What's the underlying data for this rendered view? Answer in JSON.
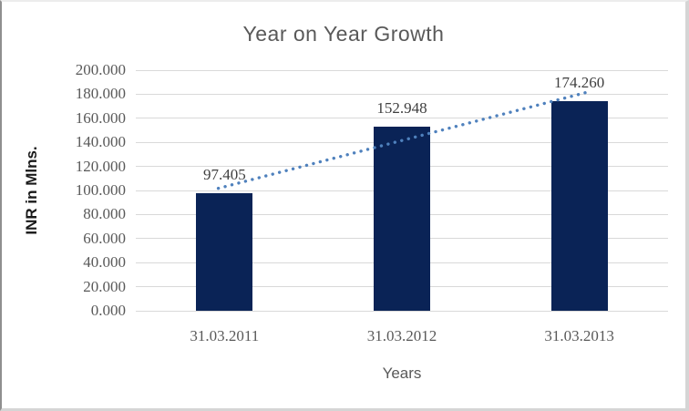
{
  "chart_data": {
    "type": "bar",
    "title": "Year on Year Growth",
    "xlabel": "Years",
    "ylabel": "INR in Mlns.",
    "categories": [
      "31.03.2011",
      "31.03.2012",
      "31.03.2013"
    ],
    "values": [
      97.405,
      152.948,
      174.26
    ],
    "data_labels": [
      "97.405",
      "152.948",
      "174.260"
    ],
    "ylim": [
      0,
      200
    ],
    "ytick_step": 20,
    "ytick_labels": [
      "0.000",
      "20.000",
      "40.000",
      "60.000",
      "80.000",
      "100.000",
      "120.000",
      "140.000",
      "160.000",
      "180.000",
      "200.000"
    ],
    "grid": true,
    "legend": "none",
    "trendline": {
      "type": "linear",
      "style": "dotted"
    },
    "colors": {
      "bar": "#0a2356",
      "trendline": "#4f81bd",
      "gridline": "#d9d9d9",
      "title": "#595959",
      "tick_label": "#595959",
      "data_label": "#3f3f3f",
      "axis_title": "#595959",
      "y_axis_title": "#1a1a1a"
    }
  }
}
